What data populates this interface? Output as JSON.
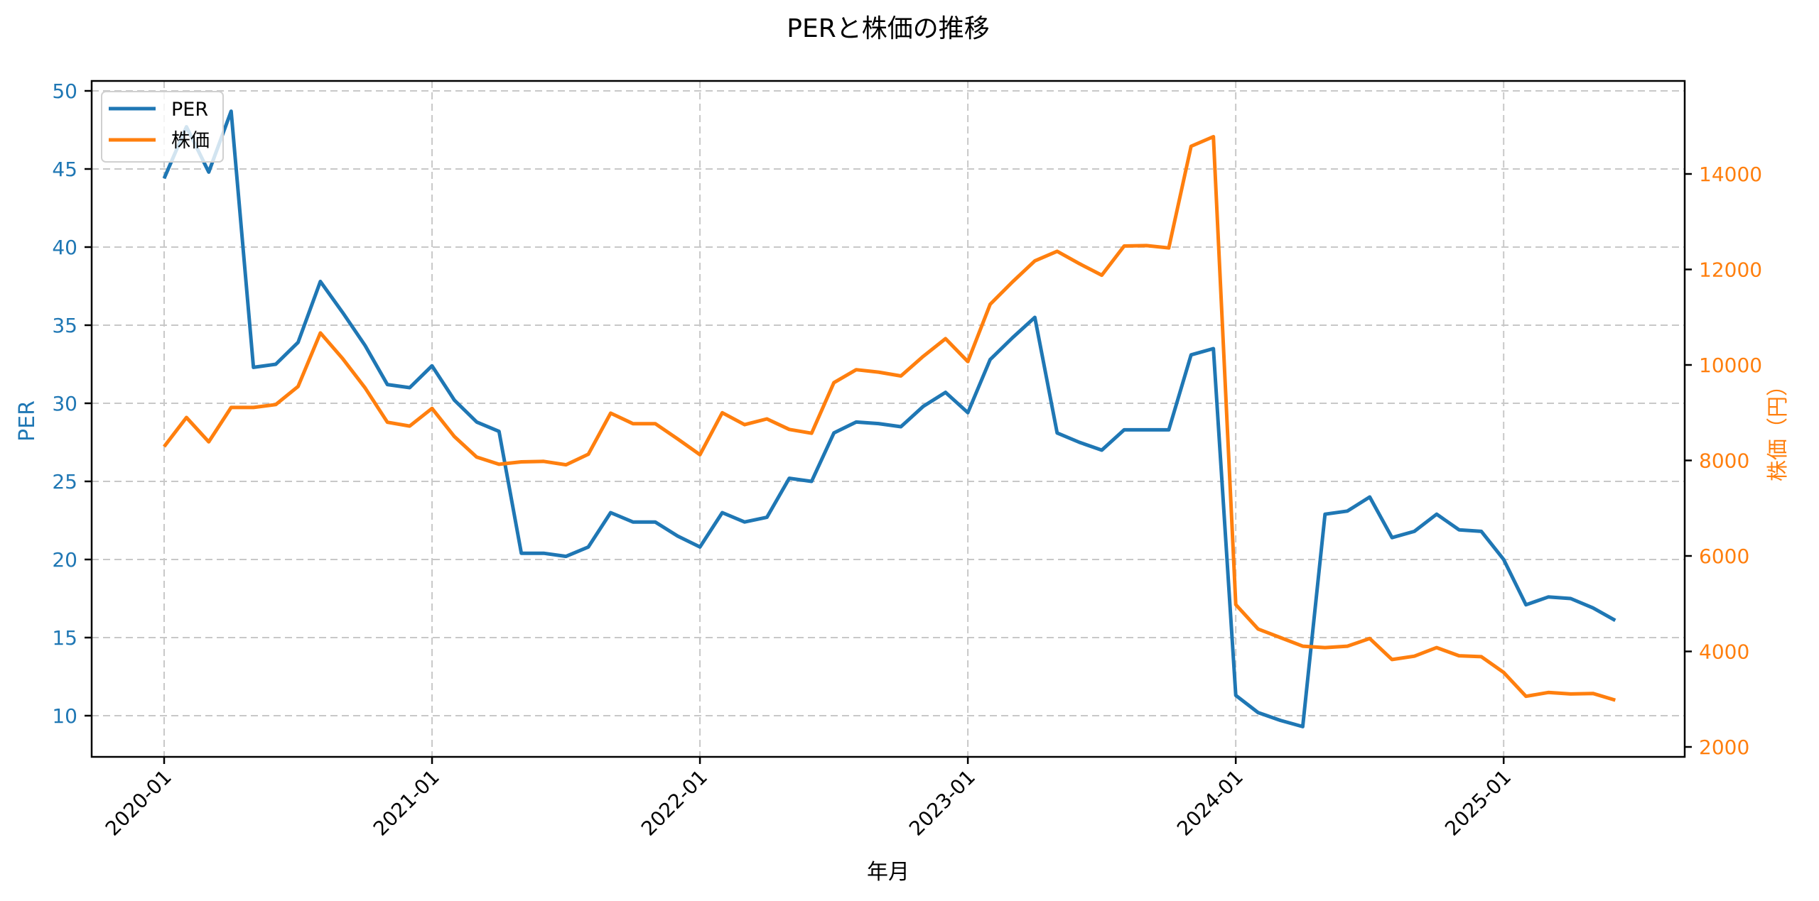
{
  "chart_data": {
    "type": "line",
    "title": "PERと株価の推移",
    "xlabel": "年月",
    "ylabel_left": "PER",
    "ylabel_right": "株価（円）",
    "x_ticks": [
      "2020-01",
      "2021-01",
      "2022-01",
      "2023-01",
      "2024-01",
      "2025-01"
    ],
    "y_left_ticks": [
      10,
      15,
      20,
      25,
      30,
      35,
      40,
      45,
      50
    ],
    "y_right_ticks": [
      2000,
      4000,
      6000,
      8000,
      10000,
      12000,
      14000
    ],
    "ylim_left": [
      7.4,
      50.65
    ],
    "ylim_right": [
      1790,
      15770
    ],
    "grid": true,
    "legend_position": "upper left",
    "x": [
      "2020-01",
      "2020-02",
      "2020-03",
      "2020-04",
      "2020-05",
      "2020-06",
      "2020-07",
      "2020-08",
      "2020-09",
      "2020-10",
      "2020-11",
      "2020-12",
      "2021-01",
      "2021-02",
      "2021-03",
      "2021-04",
      "2021-05",
      "2021-06",
      "2021-07",
      "2021-08",
      "2021-09",
      "2021-10",
      "2021-11",
      "2021-12",
      "2022-01",
      "2022-02",
      "2022-03",
      "2022-04",
      "2022-05",
      "2022-06",
      "2022-07",
      "2022-08",
      "2022-09",
      "2022-10",
      "2022-11",
      "2022-12",
      "2023-01",
      "2023-02",
      "2023-03",
      "2023-04",
      "2023-05",
      "2023-06",
      "2023-07",
      "2023-08",
      "2023-09",
      "2023-10",
      "2023-11",
      "2023-12",
      "2024-01",
      "2024-02",
      "2024-03",
      "2024-04",
      "2024-05",
      "2024-06",
      "2024-07",
      "2024-08",
      "2024-09",
      "2024-10",
      "2024-11",
      "2024-12",
      "2025-01",
      "2025-02",
      "2025-03",
      "2025-04",
      "2025-05",
      "2025-06"
    ],
    "series": [
      {
        "name": "PER",
        "axis": "left",
        "color": "#1f77b4",
        "values": [
          44.4,
          47.7,
          44.8,
          48.7,
          32.3,
          32.5,
          33.9,
          37.8,
          35.8,
          33.7,
          31.2,
          31.0,
          32.4,
          30.2,
          28.8,
          28.2,
          20.4,
          20.4,
          20.2,
          20.8,
          23.0,
          22.4,
          22.4,
          21.5,
          20.8,
          23.0,
          22.4,
          22.7,
          25.2,
          25.0,
          28.1,
          28.8,
          28.7,
          28.5,
          29.8,
          30.7,
          29.4,
          32.8,
          34.2,
          35.5,
          28.1,
          27.5,
          27.0,
          28.3,
          28.3,
          28.3,
          33.1,
          33.5,
          11.3,
          10.2,
          9.7,
          9.3,
          22.9,
          23.1,
          24.0,
          21.4,
          21.8,
          22.9,
          21.9,
          21.8,
          20.0,
          17.1,
          17.6,
          17.5,
          16.9,
          16.1
        ]
      },
      {
        "name": "株価",
        "axis": "right",
        "color": "#ff7f0e",
        "values": [
          8290,
          8900,
          8390,
          9110,
          9110,
          9170,
          9550,
          10670,
          10130,
          9520,
          8800,
          8720,
          9090,
          8500,
          8070,
          7920,
          7970,
          7980,
          7910,
          8130,
          8990,
          8770,
          8770,
          8450,
          8120,
          9000,
          8750,
          8870,
          8650,
          8570,
          9630,
          9900,
          9850,
          9770,
          10180,
          10550,
          10070,
          11270,
          11740,
          12180,
          12380,
          12120,
          11880,
          12490,
          12500,
          12450,
          14580,
          14780,
          4980,
          4470,
          4290,
          4110,
          4080,
          4110,
          4270,
          3830,
          3900,
          4080,
          3910,
          3890,
          3560,
          3060,
          3140,
          3110,
          3120,
          2980
        ]
      }
    ]
  },
  "legend": {
    "items": [
      {
        "label": "PER",
        "color": "#1f77b4"
      },
      {
        "label": "株価",
        "color": "#ff7f0e"
      }
    ]
  }
}
